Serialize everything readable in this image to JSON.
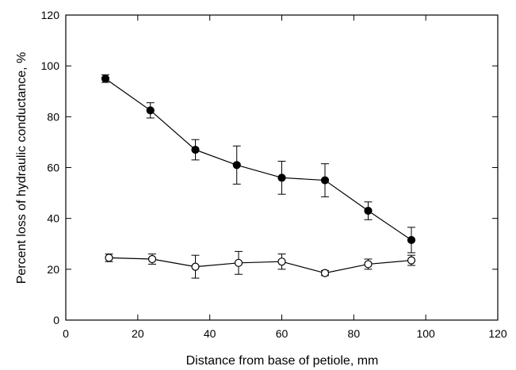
{
  "chart_data": {
    "type": "scatter",
    "title": "",
    "xlabel": "Distance from base of petiole, mm",
    "ylabel": "Percent loss of hydraulic conductance, %",
    "xlim": [
      0,
      120
    ],
    "ylim": [
      0,
      120
    ],
    "xticks": [
      0,
      20,
      40,
      60,
      80,
      100,
      120
    ],
    "yticks": [
      0,
      20,
      40,
      60,
      80,
      100,
      120
    ],
    "grid": false,
    "legend": "none",
    "series": [
      {
        "marker": "filled-circle",
        "color": "#000000",
        "connected": true,
        "x": [
          11,
          23.5,
          36,
          47.5,
          60,
          72,
          84,
          96
        ],
        "y": [
          95,
          82.5,
          67,
          61,
          56,
          55,
          43,
          31.5
        ],
        "yerr": [
          1.5,
          3,
          4,
          7.5,
          6.5,
          6.5,
          3.5,
          5
        ]
      },
      {
        "marker": "open-circle",
        "color": "#000000",
        "connected": true,
        "x": [
          12,
          24,
          36,
          48,
          60,
          72,
          84,
          96
        ],
        "y": [
          24.5,
          24,
          21,
          22.5,
          23,
          18.5,
          22,
          23.5
        ],
        "yerr": [
          1.5,
          2,
          4.5,
          4.5,
          3,
          1,
          2,
          2
        ]
      }
    ]
  }
}
